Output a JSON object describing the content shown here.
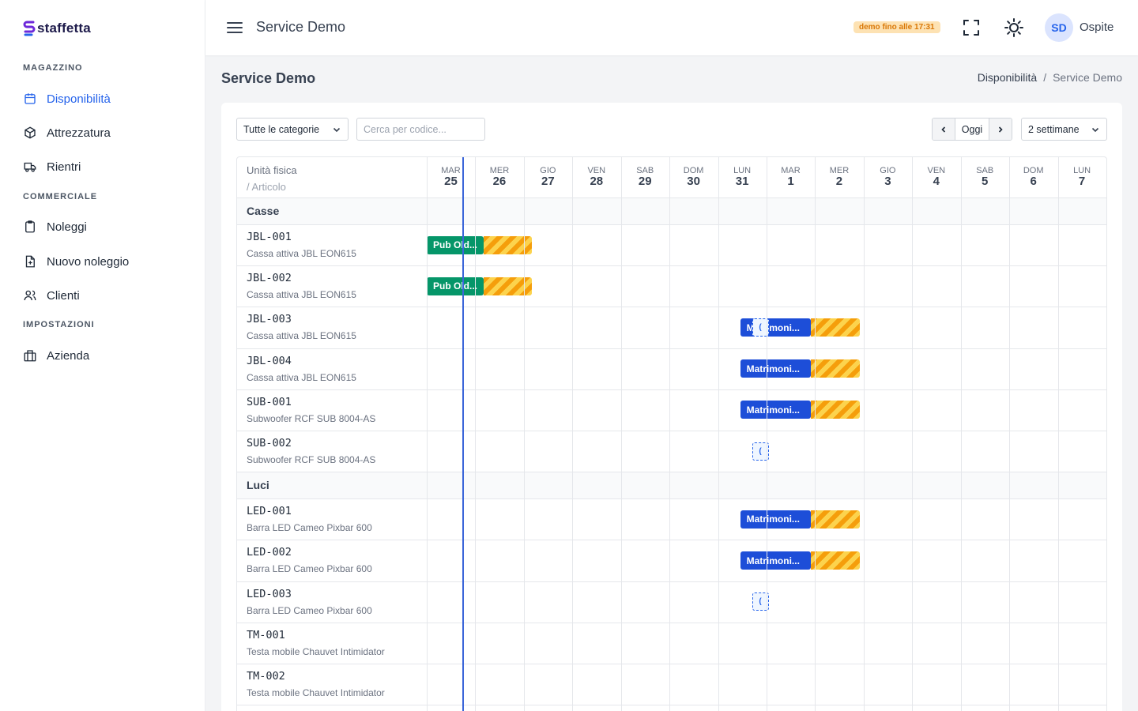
{
  "brand": {
    "name": "staffetta"
  },
  "sidebar": {
    "sections": [
      {
        "title": "MAGAZZINO",
        "items": [
          {
            "label": "Disponibilità",
            "icon": "calendar-icon",
            "active": true
          },
          {
            "label": "Attrezzatura",
            "icon": "box-icon"
          },
          {
            "label": "Rientri",
            "icon": "truck-icon"
          }
        ]
      },
      {
        "title": "COMMERCIALE",
        "items": [
          {
            "label": "Noleggi",
            "icon": "clipboard-icon"
          },
          {
            "label": "Nuovo noleggio",
            "icon": "file-plus-icon"
          },
          {
            "label": "Clienti",
            "icon": "users-icon"
          }
        ]
      },
      {
        "title": "IMPOSTAZIONI",
        "items": [
          {
            "label": "Azienda",
            "icon": "building-icon"
          }
        ]
      }
    ]
  },
  "topbar": {
    "title": "Service Demo",
    "demo_badge": "demo fino alle 17:31",
    "avatar_initials": "SD",
    "user_name": "Ospite"
  },
  "page": {
    "title": "Service Demo",
    "breadcrumb": [
      "Disponibilità",
      "Service Demo"
    ]
  },
  "toolbar": {
    "category_select": "Tutte le categorie",
    "search_placeholder": "Cerca per codice...",
    "today_label": "Oggi",
    "range_select": "2 settimane"
  },
  "calendar": {
    "head_unit": "Unità fisica",
    "head_article": "/ Articolo",
    "days": [
      {
        "name": "MAR",
        "num": "25"
      },
      {
        "name": "MER",
        "num": "26"
      },
      {
        "name": "GIO",
        "num": "27"
      },
      {
        "name": "VEN",
        "num": "28"
      },
      {
        "name": "SAB",
        "num": "29"
      },
      {
        "name": "DOM",
        "num": "30"
      },
      {
        "name": "LUN",
        "num": "31"
      },
      {
        "name": "MAR",
        "num": "1"
      },
      {
        "name": "MER",
        "num": "2"
      },
      {
        "name": "GIO",
        "num": "3"
      },
      {
        "name": "VEN",
        "num": "4"
      },
      {
        "name": "SAB",
        "num": "5"
      },
      {
        "name": "DOM",
        "num": "6"
      },
      {
        "name": "LUN",
        "num": "7"
      }
    ],
    "groups": [
      {
        "label": "Casse",
        "rows": [
          {
            "code": "JBL-001",
            "desc": "Cassa attiva JBL EON615",
            "booking": {
              "label": "Pub Old...",
              "color": "#059669"
            }
          },
          {
            "code": "JBL-002",
            "desc": "Cassa attiva JBL EON615",
            "booking": {
              "label": "Pub Old...",
              "color": "#059669"
            }
          },
          {
            "code": "JBL-003",
            "desc": "Cassa attiva JBL EON615",
            "booking": {
              "label": "Matrimoni...",
              "color": "#1d4ed8"
            },
            "pending": "("
          },
          {
            "code": "JBL-004",
            "desc": "Cassa attiva JBL EON615",
            "booking": {
              "label": "Matrimoni...",
              "color": "#1d4ed8"
            }
          },
          {
            "code": "SUB-001",
            "desc": "Subwoofer RCF SUB 8004-AS",
            "booking": {
              "label": "Matrimoni...",
              "color": "#1d4ed8"
            }
          },
          {
            "code": "SUB-002",
            "desc": "Subwoofer RCF SUB 8004-AS",
            "pending": "("
          }
        ]
      },
      {
        "label": "Luci",
        "rows": [
          {
            "code": "LED-001",
            "desc": "Barra LED Cameo Pixbar 600",
            "booking": {
              "label": "Matrimoni...",
              "color": "#1d4ed8"
            }
          },
          {
            "code": "LED-002",
            "desc": "Barra LED Cameo Pixbar 600",
            "booking": {
              "label": "Matrimoni...",
              "color": "#1d4ed8"
            }
          },
          {
            "code": "LED-003",
            "desc": "Barra LED Cameo Pixbar 600",
            "pending": "("
          },
          {
            "code": "TM-001",
            "desc": "Testa mobile Chauvet Intimidator"
          },
          {
            "code": "TM-002",
            "desc": "Testa mobile Chauvet Intimidator"
          }
        ]
      }
    ]
  }
}
